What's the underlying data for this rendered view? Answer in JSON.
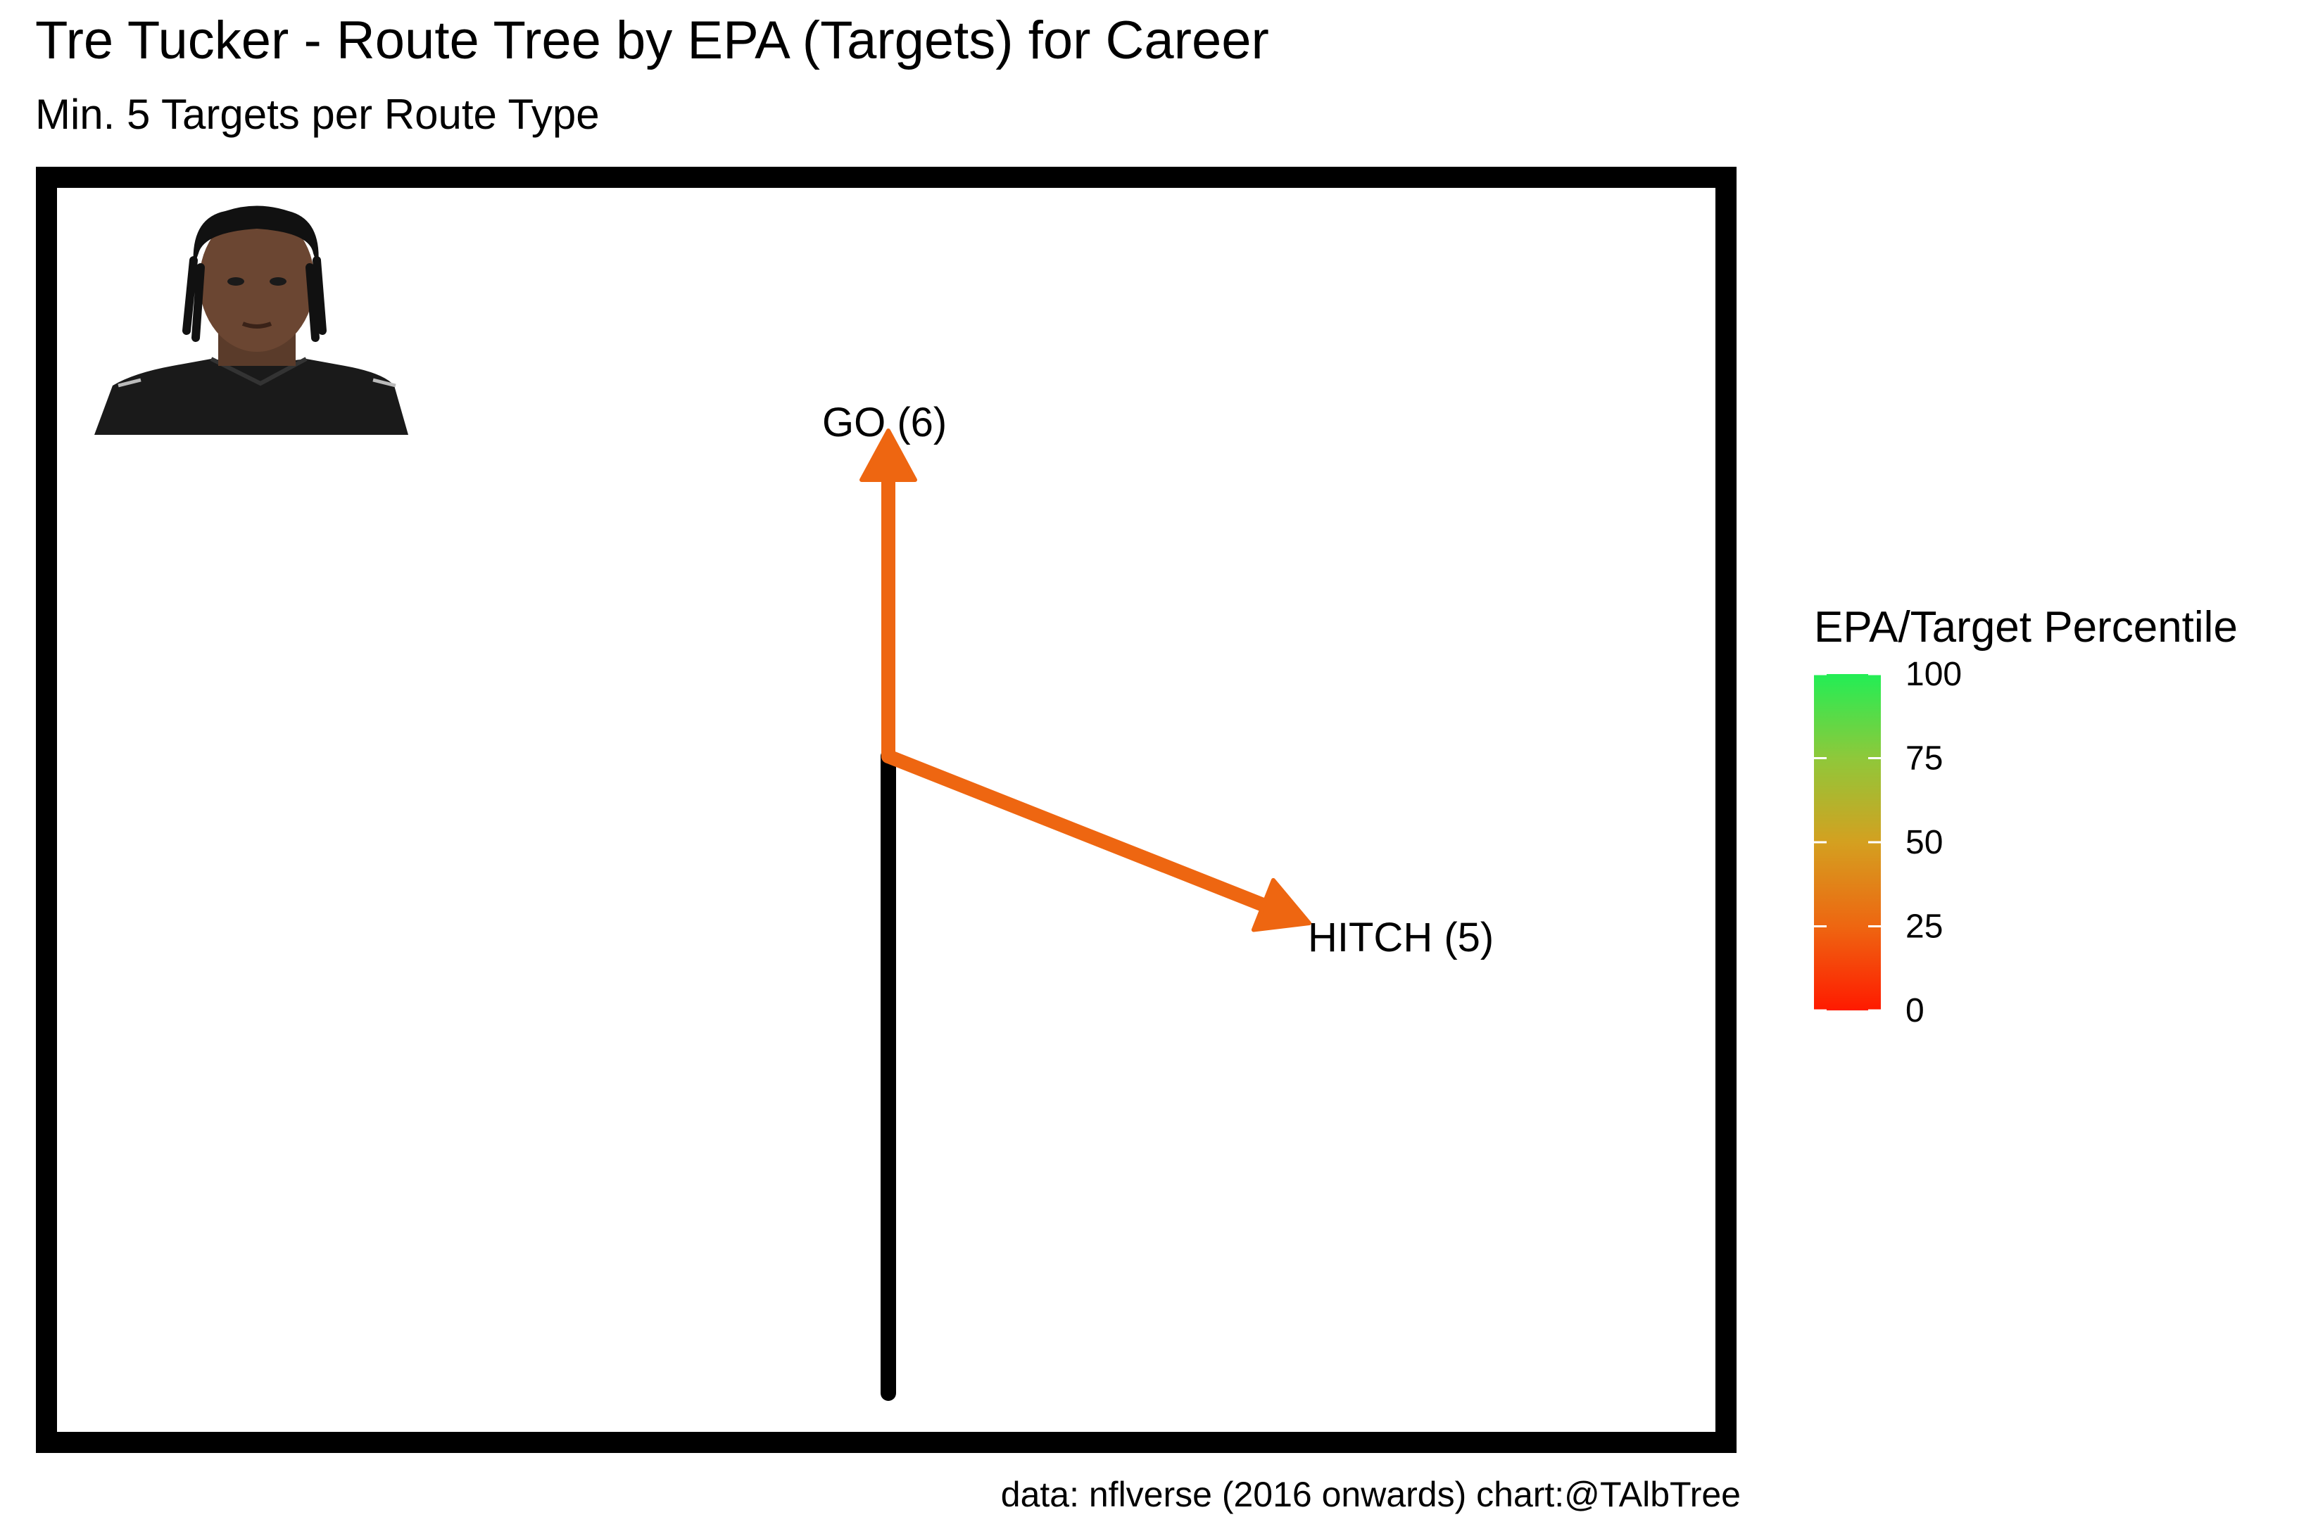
{
  "header": {
    "title": "Tre Tucker - Route Tree by EPA (Targets) for Career",
    "subtitle": "Min. 5 Targets per Route Type"
  },
  "caption": "data: nflverse (2016 onwards)  chart:@TAlbTree",
  "colors": {
    "frame": "#000000",
    "stem": "#000000",
    "gradient_low": "#ff1a00",
    "gradient_mid": "#d4a020",
    "gradient_high": "#22ee55"
  },
  "player_image": {
    "icon": "player-headshot"
  },
  "chart_data": {
    "type": "route-tree",
    "routes": [
      {
        "label": "GO (6)",
        "route": "GO",
        "targets": 6,
        "percentile": 20,
        "color": "#ee6611"
      },
      {
        "label": "HITCH (5)",
        "route": "HITCH",
        "targets": 5,
        "percentile": 20,
        "color": "#ee6611"
      }
    ],
    "legend": {
      "title": "EPA/Target Percentile",
      "ticks": [
        "0",
        "25",
        "50",
        "75",
        "100"
      ],
      "range": [
        0,
        100
      ],
      "placement": "right"
    }
  }
}
